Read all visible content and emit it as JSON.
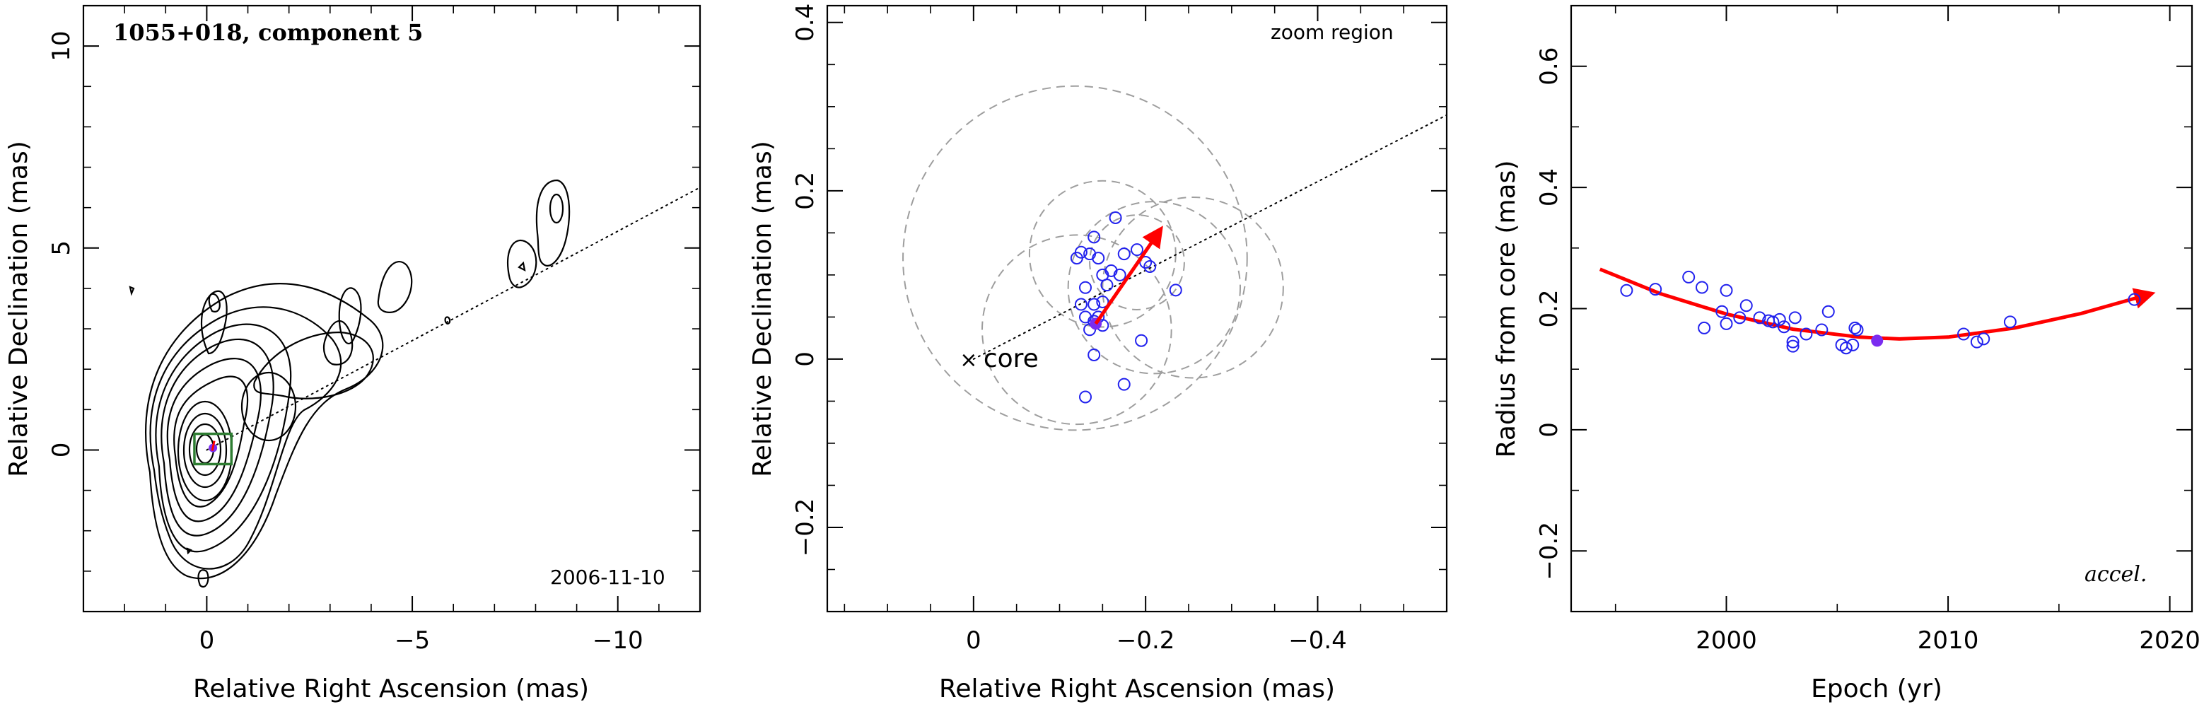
{
  "chart_data": [
    {
      "type": "contour",
      "xlabel": "Relative Right Ascension (mas)",
      "ylabel": "Relative Declination (mas)",
      "xlim": [
        3,
        -12
      ],
      "ylim": [
        -4,
        11
      ],
      "xticks": [
        0,
        -5,
        -10
      ],
      "yticks": [
        0,
        5,
        10
      ],
      "title": "1055+018, component 5",
      "annotation": "2006-11-10",
      "trajectory_line": {
        "x": [
          0,
          -12
        ],
        "y": [
          0,
          6.5
        ]
      },
      "core_peak": {
        "x": -0.15,
        "y": 0.05
      },
      "zoom_box": {
        "x": [
          0.3,
          -0.6
        ],
        "y": [
          -0.35,
          0.4
        ]
      },
      "colors": {
        "contour": "#000000",
        "box": "#2e7d32",
        "marker": "#7b2cf0",
        "vector": "#ff0000"
      }
    },
    {
      "type": "scatter",
      "xlabel": "Relative Right Ascension (mas)",
      "ylabel": "Relative Declination (mas)",
      "xlim": [
        0.17,
        -0.55
      ],
      "ylim": [
        -0.3,
        0.42
      ],
      "xticks": [
        0,
        -0.2,
        -0.4
      ],
      "yticks": [
        -0.2,
        0,
        0.2,
        0.4
      ],
      "annotation": "zoom region",
      "core_label": "core",
      "points": [
        [
          -0.12,
          0.12
        ],
        [
          -0.125,
          0.127
        ],
        [
          -0.135,
          0.125
        ],
        [
          -0.14,
          0.145
        ],
        [
          -0.145,
          0.12
        ],
        [
          -0.16,
          0.105
        ],
        [
          -0.165,
          0.168
        ],
        [
          -0.175,
          0.125
        ],
        [
          -0.19,
          0.13
        ],
        [
          -0.2,
          0.115
        ],
        [
          -0.205,
          0.11
        ],
        [
          -0.15,
          0.1
        ],
        [
          -0.155,
          0.088
        ],
        [
          -0.17,
          0.1
        ],
        [
          -0.235,
          0.082
        ],
        [
          -0.13,
          0.085
        ],
        [
          -0.125,
          0.065
        ],
        [
          -0.14,
          0.065
        ],
        [
          -0.15,
          0.068
        ],
        [
          -0.13,
          0.05
        ],
        [
          -0.14,
          0.045
        ],
        [
          -0.15,
          0.04
        ],
        [
          -0.135,
          0.035
        ],
        [
          -0.145,
          0.05
        ],
        [
          -0.195,
          0.022
        ],
        [
          -0.14,
          0.005
        ],
        [
          -0.175,
          -0.03
        ],
        [
          -0.13,
          -0.045
        ]
      ],
      "highlight_point": [
        -0.142,
        0.042
      ],
      "trajectory_line": {
        "x": [
          0,
          -0.55
        ],
        "y": [
          0,
          0.29
        ]
      },
      "velocity_vector": {
        "from": [
          -0.142,
          0.042
        ],
        "to": [
          -0.218,
          0.155
        ]
      },
      "uncertainty_circles": [
        {
          "x": -0.118,
          "y": 0.12,
          "r": 0.2
        },
        {
          "x": -0.12,
          "y": 0.035,
          "r": 0.11
        },
        {
          "x": -0.15,
          "y": 0.125,
          "r": 0.085
        },
        {
          "x": -0.21,
          "y": 0.085,
          "r": 0.1
        },
        {
          "x": -0.255,
          "y": 0.085,
          "r": 0.105
        },
        {
          "x": -0.19,
          "y": 0.115,
          "r": 0.055
        }
      ],
      "colors": {
        "points": "#2222ee",
        "highlight": "#7b2cf0",
        "vector": "#ff0000",
        "circles": "#9e9e9e"
      }
    },
    {
      "type": "scatter",
      "xlabel": "Epoch (yr)",
      "ylabel": "Radius from core (mas)",
      "xlim": [
        1993,
        2021
      ],
      "ylim": [
        -0.3,
        0.7
      ],
      "xticks": [
        2000,
        2010,
        2020
      ],
      "yticks": [
        -0.2,
        0,
        0.2,
        0.4,
        0.6
      ],
      "annotation": "accel.",
      "points": [
        [
          1995.5,
          0.23
        ],
        [
          1996.8,
          0.232
        ],
        [
          1998.3,
          0.252
        ],
        [
          1998.9,
          0.235
        ],
        [
          1999.0,
          0.168
        ],
        [
          1999.8,
          0.195
        ],
        [
          2000.0,
          0.23
        ],
        [
          2000.0,
          0.175
        ],
        [
          2000.6,
          0.185
        ],
        [
          2000.9,
          0.205
        ],
        [
          2001.5,
          0.185
        ],
        [
          2001.9,
          0.18
        ],
        [
          2002.1,
          0.178
        ],
        [
          2002.4,
          0.182
        ],
        [
          2002.6,
          0.17
        ],
        [
          2003.0,
          0.138
        ],
        [
          2003.0,
          0.145
        ],
        [
          2003.1,
          0.185
        ],
        [
          2003.6,
          0.158
        ],
        [
          2004.3,
          0.165
        ],
        [
          2004.6,
          0.195
        ],
        [
          2005.2,
          0.14
        ],
        [
          2005.4,
          0.135
        ],
        [
          2005.7,
          0.14
        ],
        [
          2005.8,
          0.168
        ],
        [
          2005.9,
          0.165
        ],
        [
          2010.7,
          0.158
        ],
        [
          2011.3,
          0.145
        ],
        [
          2011.6,
          0.15
        ],
        [
          2012.8,
          0.178
        ],
        [
          2018.4,
          0.215
        ]
      ],
      "highlight_point": [
        2006.8,
        0.147
      ],
      "fit_curve": {
        "x": [
          1994.3,
          1997,
          2000,
          2003,
          2006,
          2007.8,
          2010,
          2013,
          2016,
          2019.2
        ],
        "y": [
          0.265,
          0.225,
          0.191,
          0.166,
          0.153,
          0.15,
          0.153,
          0.168,
          0.192,
          0.225
        ]
      },
      "colors": {
        "points": "#2222ee",
        "highlight": "#7b2cf0",
        "curve": "#ff0000"
      }
    }
  ]
}
